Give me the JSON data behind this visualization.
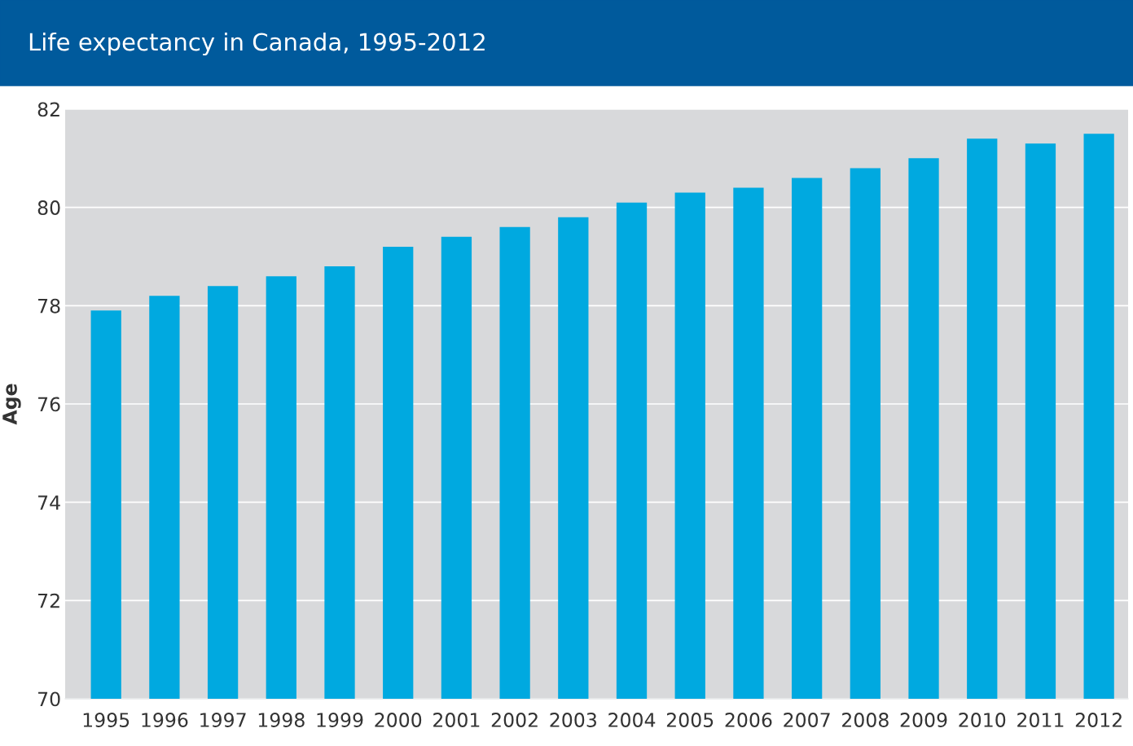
{
  "chart_data": {
    "type": "bar",
    "title": "Life expectancy in Canada, 1995-2012",
    "ylabel": "Age",
    "categories": [
      "1995",
      "1996",
      "1997",
      "1998",
      "1999",
      "2000",
      "2001",
      "2002",
      "2003",
      "2004",
      "2005",
      "2006",
      "2007",
      "2008",
      "2009",
      "2010",
      "2011",
      "2012"
    ],
    "values": [
      77.9,
      78.2,
      78.4,
      78.6,
      78.8,
      79.2,
      79.4,
      79.6,
      79.8,
      80.1,
      80.3,
      80.4,
      80.6,
      80.8,
      81.0,
      81.4,
      81.3,
      81.5
    ],
    "color": "#00a9e0",
    "ylim": [
      70,
      82
    ],
    "yticks": [
      70,
      72,
      74,
      76,
      78,
      80,
      82
    ],
    "grid": "y",
    "legend": false
  }
}
